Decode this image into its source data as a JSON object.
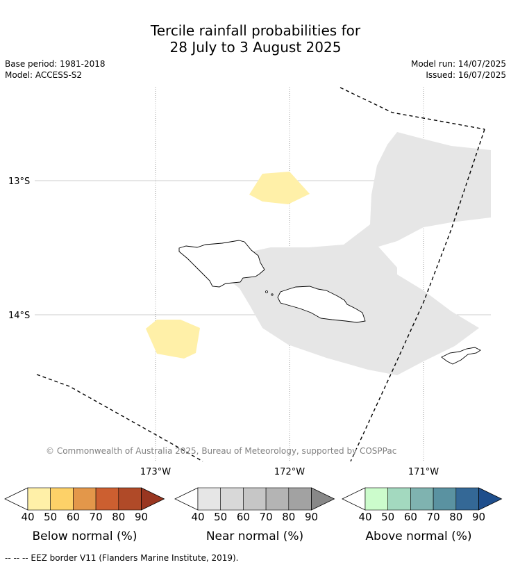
{
  "title_line1": "Tercile rainfall probabilities for",
  "title_line2": "28 July to 3 August 2025",
  "base_period": "Base period: 1981-2018",
  "model": "Model: ACCESS-S2",
  "model_run": "Model run: 14/07/2025",
  "issued": "Issued: 16/07/2025",
  "copyright": "© Commonwealth of Australia 2025, Bureau of Meteorology, supported by COSPPac",
  "lat_labels": [
    "13°S",
    "14°S"
  ],
  "lon_labels": [
    "173°W",
    "172°W",
    "171°W"
  ],
  "footer": "--  --  -- EEZ border V11 (Flanders Marine Institute, 2019).",
  "legends": [
    {
      "title": "Below normal (%)",
      "ticks": [
        "40",
        "50",
        "60",
        "70",
        "80",
        "90"
      ],
      "colors": [
        "#fff0a8",
        "#fdd168",
        "#e3974a",
        "#cc5f30",
        "#b04a28",
        "#993620"
      ],
      "arrow_max": "#993620"
    },
    {
      "title": "Near normal (%)",
      "ticks": [
        "40",
        "50",
        "60",
        "70",
        "80",
        "90"
      ],
      "colors": [
        "#e6e6e6",
        "#d8d8d8",
        "#c6c6c6",
        "#b4b4b4",
        "#a2a2a2",
        "#888888"
      ],
      "arrow_max": "#888888"
    },
    {
      "title": "Above normal (%)",
      "ticks": [
        "40",
        "50",
        "60",
        "70",
        "80",
        "90"
      ],
      "colors": [
        "#ccfccc",
        "#a3d9bf",
        "#7fb3b0",
        "#5a92a1",
        "#346896",
        "#1e4e8c"
      ],
      "arrow_max": "#1e4e8c"
    }
  ]
}
